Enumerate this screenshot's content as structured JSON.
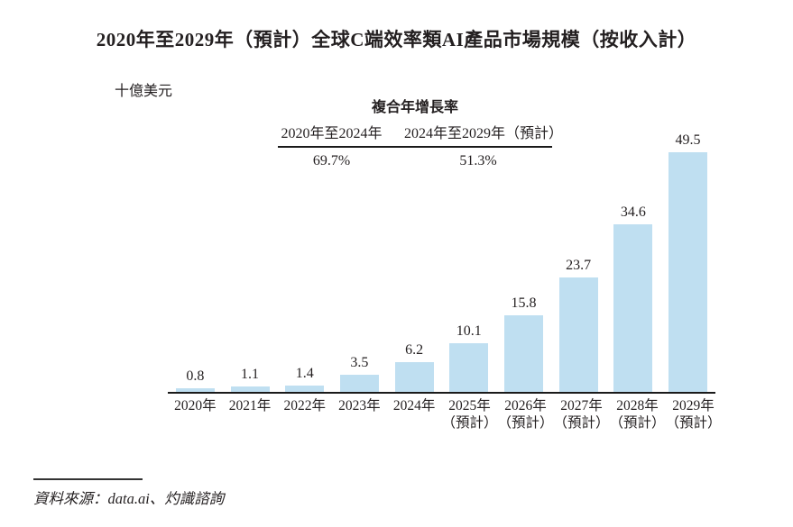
{
  "title": "2020年至2029年（預計）全球C端效率類AI產品市場規模（按收入計）",
  "unit_label": "十億美元",
  "cagr": {
    "title": "複合年增長率",
    "columns": [
      {
        "label": "2020年至2024年",
        "value": "69.7%"
      },
      {
        "label": "2024年至2029年（預計）",
        "value": "51.3%"
      }
    ]
  },
  "source": "資料來源：data.ai、灼識諮詢",
  "chart_data": {
    "type": "bar",
    "title": "2020年至2029年（預計）全球C端效率類AI產品市場規模（按收入計）",
    "categories": [
      "2020年",
      "2021年",
      "2022年",
      "2023年",
      "2024年",
      "2025年（預計）",
      "2026年（預計）",
      "2027年（預計）",
      "2028年（預計）",
      "2029年（預計）"
    ],
    "values": [
      0.8,
      1.1,
      1.4,
      3.5,
      6.2,
      10.1,
      15.8,
      23.7,
      34.6,
      49.5
    ],
    "xlabel": "",
    "ylabel": "十億美元",
    "ylim": [
      0,
      52
    ],
    "grid": false,
    "legend_position": "none",
    "bar_color": "#BFDFF1",
    "axis_color": "#1a1a1a",
    "forecast_note": "（預計）",
    "annotations": {
      "cagr_2020_2024": "69.7%",
      "cagr_2024_2029": "51.3%"
    }
  }
}
